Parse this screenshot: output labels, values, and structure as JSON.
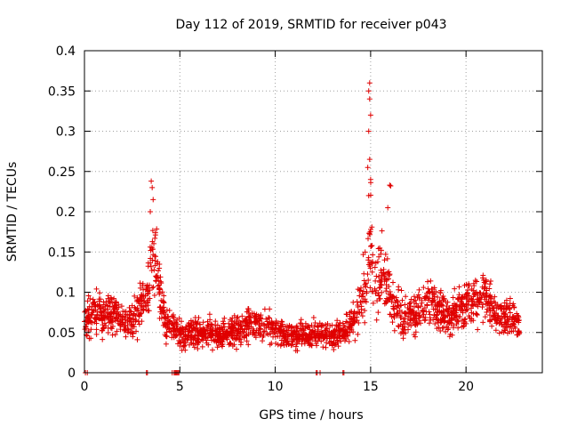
{
  "chart_data": {
    "type": "scatter",
    "title": "Day 112 of 2019, SRMTID for receiver p043",
    "xlabel": "GPS time / hours",
    "ylabel": "SRMTID / TECUs",
    "xlim": [
      0,
      24
    ],
    "ylim": [
      0,
      0.4
    ],
    "x_ticks": [
      "0",
      "5",
      "10",
      "15",
      "20"
    ],
    "x_tick_values": [
      0,
      5,
      10,
      15,
      20
    ],
    "y_ticks": [
      "0",
      "0.05",
      "0.1",
      "0.15",
      "0.2",
      "0.25",
      "0.3",
      "0.35",
      "0.4"
    ],
    "y_tick_values": [
      0,
      0.05,
      0.1,
      0.15,
      0.2,
      0.25,
      0.3,
      0.35,
      0.4
    ],
    "grid": true,
    "marker": "+",
    "color": "#e00000",
    "series": [
      {
        "name": "SRMTID",
        "profile_hours": [
          0,
          0.5,
          1,
          1.5,
          2,
          2.5,
          3,
          3.3,
          3.6,
          3.9,
          4.2,
          4.6,
          5,
          6,
          7,
          8,
          8.7,
          9.5,
          10.5,
          11.5,
          12.2,
          13,
          13.8,
          14.4,
          14.8,
          15.0,
          15.2,
          15.6,
          16.0,
          16.5,
          17,
          17.5,
          18,
          18.5,
          19,
          19.5,
          20,
          20.5,
          21,
          21.5,
          22,
          22.5,
          22.8
        ],
        "typical_values": [
          0.065,
          0.075,
          0.07,
          0.075,
          0.065,
          0.065,
          0.085,
          0.095,
          0.15,
          0.11,
          0.065,
          0.055,
          0.05,
          0.05,
          0.048,
          0.052,
          0.065,
          0.058,
          0.045,
          0.045,
          0.05,
          0.045,
          0.055,
          0.08,
          0.12,
          0.17,
          0.11,
          0.12,
          0.1,
          0.07,
          0.07,
          0.075,
          0.095,
          0.08,
          0.07,
          0.075,
          0.085,
          0.09,
          0.095,
          0.075,
          0.07,
          0.065,
          0.06
        ],
        "peak_points": [
          {
            "x": 3.5,
            "y": 0.238
          },
          {
            "x": 3.55,
            "y": 0.23
          },
          {
            "x": 3.6,
            "y": 0.215
          },
          {
            "x": 3.45,
            "y": 0.2
          },
          {
            "x": 14.95,
            "y": 0.36
          },
          {
            "x": 14.9,
            "y": 0.35
          },
          {
            "x": 14.95,
            "y": 0.34
          },
          {
            "x": 15.0,
            "y": 0.32
          },
          {
            "x": 14.9,
            "y": 0.3
          },
          {
            "x": 14.95,
            "y": 0.265
          },
          {
            "x": 14.85,
            "y": 0.255
          },
          {
            "x": 15.0,
            "y": 0.24
          },
          {
            "x": 14.9,
            "y": 0.22
          },
          {
            "x": 16.0,
            "y": 0.233
          },
          {
            "x": 16.05,
            "y": 0.232
          },
          {
            "x": 15.9,
            "y": 0.205
          }
        ],
        "zero_points_x": [
          0.05,
          0.15,
          3.25,
          3.3,
          4.6,
          4.7,
          4.75,
          4.8,
          4.85,
          4.9,
          4.95,
          12.15,
          12.2,
          12.35,
          13.55,
          13.6
        ]
      }
    ]
  }
}
